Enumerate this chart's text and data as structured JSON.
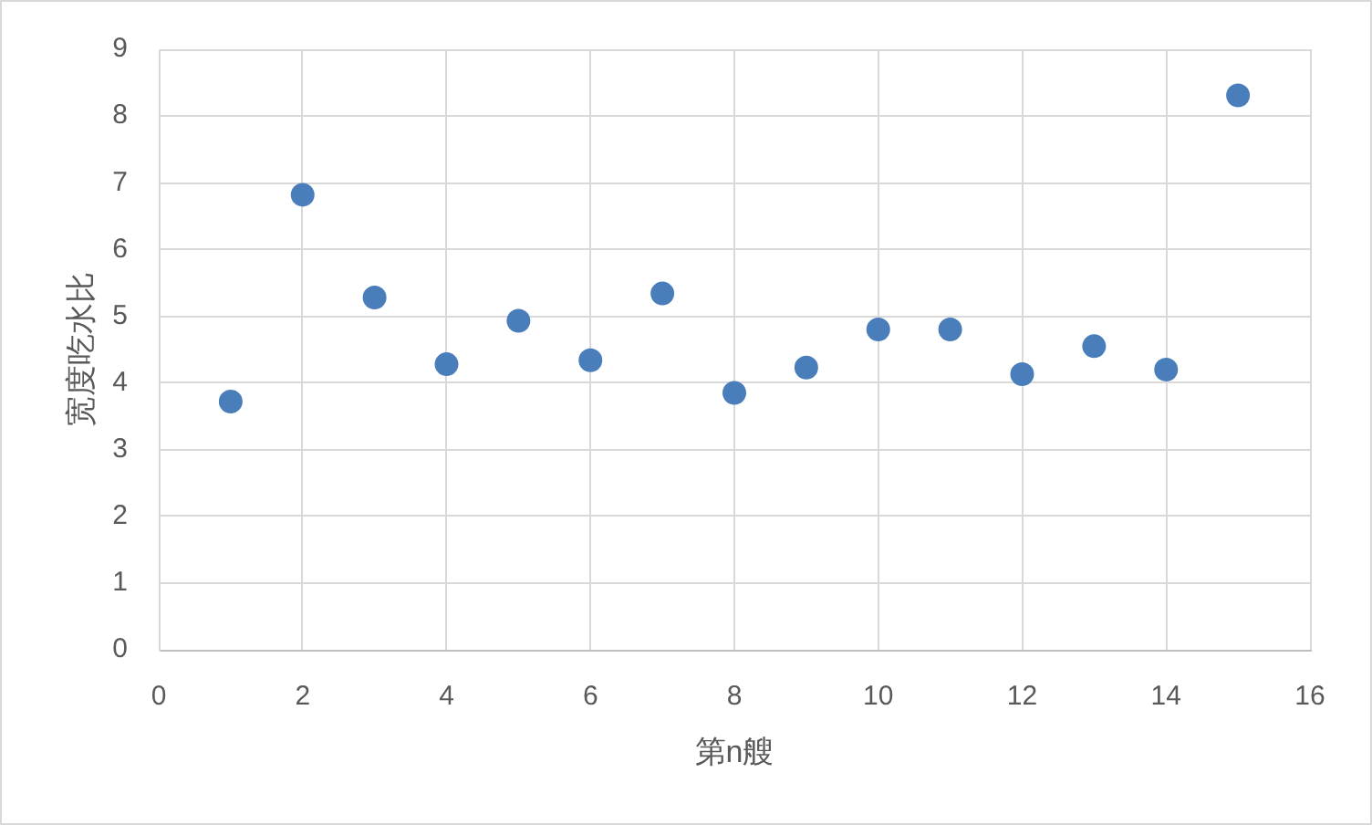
{
  "chart_data": {
    "type": "scatter",
    "xlabel": "第n艘",
    "ylabel": "宽度吃水比",
    "x": [
      1,
      2,
      3,
      4,
      5,
      6,
      7,
      8,
      9,
      10,
      11,
      12,
      13,
      14,
      15
    ],
    "values": [
      3.72,
      6.82,
      5.28,
      4.28,
      4.93,
      4.34,
      5.34,
      3.85,
      4.23,
      4.8,
      4.8,
      4.13,
      4.55,
      4.2,
      8.31
    ],
    "color": "#4a7ebb",
    "marker": "circle",
    "xlim": [
      0,
      16
    ],
    "xticks": [
      0,
      2,
      4,
      6,
      8,
      10,
      12,
      14,
      16
    ],
    "ylim": [
      0,
      9
    ],
    "yticks": [
      0,
      1,
      2,
      3,
      4,
      5,
      6,
      7,
      8,
      9
    ],
    "grid": true
  }
}
